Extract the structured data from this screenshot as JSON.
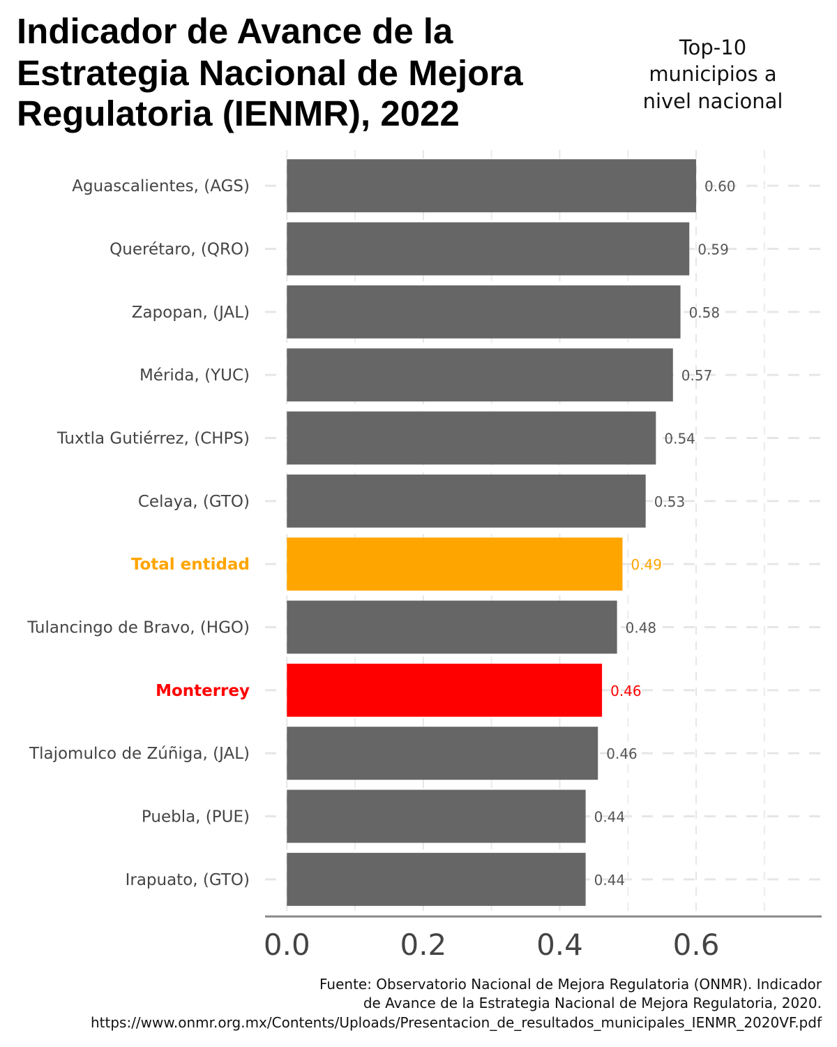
{
  "chart_data": {
    "type": "hbar",
    "title": [
      "Indicador de Avance de la",
      "Estrategia Nacional de Mejora",
      "Regulatoria (IENMR), 2022"
    ],
    "subtitle": [
      "Top-10",
      "municipios a",
      "nivel nacional"
    ],
    "caption": [
      "Fuente: Observatorio Nacional de Mejora Regulatoria (ONMR). Indicador",
      "de Avance de la Estrategia Nacional de Mejora Regulatoria, 2020.",
      "https://www.onmr.org.mx/Contents/Uploads/Presentacion_de_resultados_municipales_IENMR_2020VF.pdf"
    ],
    "categories": [
      "Aguascalientes, (AGS)",
      "Querétaro, (QRO)",
      "Zapopan, (JAL)",
      "Mérida, (YUC)",
      "Tuxtla Gutiérrez, (CHPS)",
      "Celaya, (GTO)",
      "Total entidad",
      "Tulancingo de Bravo, (HGO)",
      "Monterrey",
      "Tlajomulco de Zúñiga, (JAL)",
      "Puebla, (PUE)",
      "Irapuato, (GTO)"
    ],
    "values": [
      0.6,
      0.59,
      0.577,
      0.566,
      0.541,
      0.526,
      0.492,
      0.484,
      0.462,
      0.456,
      0.438,
      0.438
    ],
    "value_labels": [
      "0.60",
      "0.59",
      "0.58",
      "0.57",
      "0.54",
      "0.53",
      "0.49",
      "0.48",
      "0.46",
      "0.46",
      "0.44",
      "0.44"
    ],
    "color": "#666666",
    "colors": [
      "#666666",
      "#666666",
      "#666666",
      "#666666",
      "#666666",
      "#666666",
      "#ffa500",
      "#666666",
      "#ff0000",
      "#666666",
      "#666666",
      "#666666"
    ],
    "xlim": [
      -0.032,
      0.784
    ],
    "xticks": [
      {
        "value": 0,
        "label": "0.0"
      },
      0.2,
      0.4,
      0.6
    ],
    "xminor_ticks": [
      0.1,
      0.3,
      0.5,
      0.7
    ],
    "grid": true
  }
}
